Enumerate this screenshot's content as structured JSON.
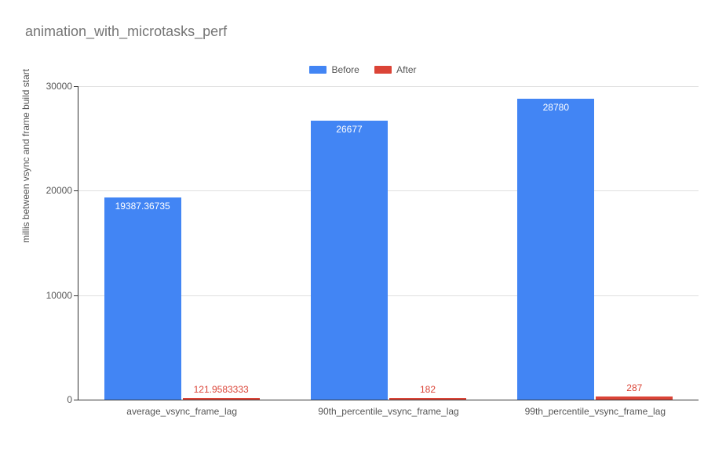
{
  "title": "animation_with_microtasks_perf",
  "ylabel": "millis between vsync and frame build start",
  "chart": {
    "type": "bar",
    "ylim": [
      0,
      30000
    ],
    "ytick_step": 10000,
    "background_color": "#ffffff",
    "grid_color": "#e0e0e0",
    "axis_color": "#333333",
    "tick_font_size": 12,
    "title_font_size": 18,
    "title_color": "#757575"
  },
  "series": [
    {
      "name": "Before",
      "color": "#4285f4",
      "label_color": "#ffffff",
      "label_inside": true
    },
    {
      "name": "After",
      "color": "#db4437",
      "label_color": "#db4437",
      "label_inside": false
    }
  ],
  "categories": [
    {
      "label": "average_vsync_frame_lag",
      "values": [
        {
          "value": 19387.36735,
          "label": "19387.36735"
        },
        {
          "value": 121.9583333,
          "label": "121.9583333"
        }
      ]
    },
    {
      "label": "90th_percentile_vsync_frame_lag",
      "values": [
        {
          "value": 26677,
          "label": "26677"
        },
        {
          "value": 182,
          "label": "182"
        }
      ]
    },
    {
      "label": "99th_percentile_vsync_frame_lag",
      "values": [
        {
          "value": 28780,
          "label": "28780"
        },
        {
          "value": 287,
          "label": "287"
        }
      ]
    }
  ]
}
